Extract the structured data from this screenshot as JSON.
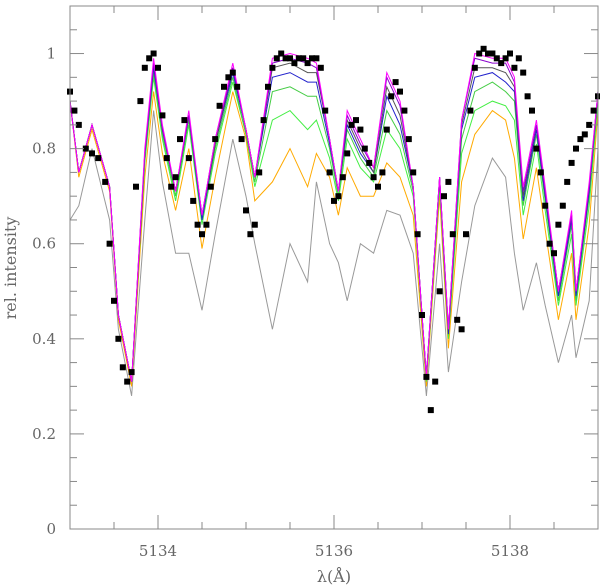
{
  "chart_data": {
    "type": "line",
    "title": "",
    "xlabel": "λ(Å)",
    "ylabel": "rel. intensity",
    "xlim": [
      5133.0,
      5139.0
    ],
    "ylim": [
      0,
      1.1
    ],
    "x_major_ticks": [
      5134,
      5136,
      5138
    ],
    "x_tick_labels": [
      "5134",
      "5136",
      "5138"
    ],
    "y_major_ticks": [
      0,
      0.2,
      0.4,
      0.6,
      0.8,
      1
    ],
    "y_tick_labels": [
      "0",
      "0.2",
      "0.4",
      "0.6",
      "0.8",
      "1"
    ],
    "grid": false,
    "legend": "none",
    "x": [
      5133.0,
      5133.1,
      5133.25,
      5133.45,
      5133.55,
      5133.7,
      5133.85,
      5133.95,
      5134.05,
      5134.2,
      5134.35,
      5134.5,
      5134.65,
      5134.85,
      5135.0,
      5135.1,
      5135.3,
      5135.5,
      5135.7,
      5135.8,
      5135.95,
      5136.05,
      5136.15,
      5136.3,
      5136.45,
      5136.6,
      5136.75,
      5136.9,
      5137.0,
      5137.05,
      5137.2,
      5137.3,
      5137.45,
      5137.6,
      5137.8,
      5137.95,
      5138.05,
      5138.15,
      5138.3,
      5138.4,
      5138.55,
      5138.7,
      5138.75,
      5138.9,
      5139.0
    ],
    "series": [
      {
        "color": "#ff00ff",
        "values": [
          0.9,
          0.75,
          0.85,
          0.72,
          0.45,
          0.31,
          0.8,
          0.99,
          0.85,
          0.71,
          0.88,
          0.66,
          0.82,
          0.98,
          0.84,
          0.74,
          0.99,
          1.0,
          0.99,
          0.98,
          0.82,
          0.71,
          0.88,
          0.82,
          0.76,
          0.96,
          0.9,
          0.72,
          0.45,
          0.32,
          0.74,
          0.42,
          0.86,
          1.0,
          0.99,
          0.99,
          0.95,
          0.72,
          0.86,
          0.72,
          0.5,
          0.67,
          0.5,
          0.73,
          0.92
        ]
      },
      {
        "color": "#8800cc",
        "values": [
          0.9,
          0.75,
          0.85,
          0.72,
          0.45,
          0.31,
          0.79,
          0.98,
          0.84,
          0.71,
          0.87,
          0.66,
          0.82,
          0.97,
          0.84,
          0.74,
          0.98,
          0.99,
          0.98,
          0.97,
          0.82,
          0.71,
          0.87,
          0.81,
          0.76,
          0.95,
          0.89,
          0.72,
          0.45,
          0.32,
          0.74,
          0.42,
          0.86,
          0.99,
          0.98,
          0.98,
          0.94,
          0.71,
          0.85,
          0.71,
          0.5,
          0.66,
          0.5,
          0.72,
          0.92
        ]
      },
      {
        "color": "#555555",
        "values": [
          0.9,
          0.75,
          0.85,
          0.72,
          0.45,
          0.31,
          0.79,
          0.98,
          0.84,
          0.71,
          0.87,
          0.66,
          0.81,
          0.97,
          0.84,
          0.74,
          0.97,
          0.98,
          0.96,
          0.96,
          0.82,
          0.71,
          0.86,
          0.8,
          0.75,
          0.93,
          0.87,
          0.72,
          0.45,
          0.32,
          0.74,
          0.42,
          0.85,
          0.97,
          0.97,
          0.96,
          0.93,
          0.7,
          0.85,
          0.71,
          0.5,
          0.66,
          0.5,
          0.72,
          0.92
        ]
      },
      {
        "color": "#2222cc",
        "values": [
          0.9,
          0.75,
          0.85,
          0.72,
          0.45,
          0.31,
          0.79,
          0.97,
          0.84,
          0.71,
          0.87,
          0.65,
          0.81,
          0.96,
          0.84,
          0.74,
          0.95,
          0.96,
          0.94,
          0.94,
          0.81,
          0.71,
          0.85,
          0.79,
          0.75,
          0.91,
          0.85,
          0.72,
          0.45,
          0.32,
          0.74,
          0.41,
          0.84,
          0.95,
          0.96,
          0.94,
          0.92,
          0.69,
          0.84,
          0.7,
          0.49,
          0.65,
          0.49,
          0.71,
          0.92
        ]
      },
      {
        "color": "#44cc44",
        "values": [
          0.9,
          0.75,
          0.85,
          0.72,
          0.45,
          0.31,
          0.78,
          0.96,
          0.83,
          0.7,
          0.86,
          0.65,
          0.8,
          0.95,
          0.83,
          0.73,
          0.92,
          0.93,
          0.91,
          0.91,
          0.8,
          0.7,
          0.84,
          0.78,
          0.74,
          0.88,
          0.83,
          0.71,
          0.45,
          0.32,
          0.73,
          0.41,
          0.82,
          0.92,
          0.94,
          0.92,
          0.9,
          0.68,
          0.83,
          0.69,
          0.48,
          0.64,
          0.48,
          0.7,
          0.91
        ]
      },
      {
        "color": "#44ee44",
        "values": [
          0.9,
          0.75,
          0.85,
          0.72,
          0.45,
          0.31,
          0.77,
          0.95,
          0.82,
          0.69,
          0.85,
          0.64,
          0.79,
          0.94,
          0.83,
          0.72,
          0.86,
          0.88,
          0.84,
          0.86,
          0.78,
          0.69,
          0.82,
          0.76,
          0.73,
          0.84,
          0.8,
          0.7,
          0.44,
          0.31,
          0.72,
          0.4,
          0.79,
          0.88,
          0.9,
          0.89,
          0.86,
          0.66,
          0.81,
          0.67,
          0.47,
          0.62,
          0.47,
          0.68,
          0.9
        ]
      },
      {
        "color": "#ffaa00",
        "values": [
          0.9,
          0.74,
          0.84,
          0.71,
          0.44,
          0.3,
          0.74,
          0.92,
          0.79,
          0.67,
          0.8,
          0.59,
          0.74,
          0.92,
          0.82,
          0.69,
          0.73,
          0.8,
          0.72,
          0.79,
          0.74,
          0.66,
          0.76,
          0.7,
          0.7,
          0.77,
          0.74,
          0.66,
          0.42,
          0.3,
          0.7,
          0.38,
          0.73,
          0.83,
          0.88,
          0.86,
          0.78,
          0.61,
          0.76,
          0.63,
          0.44,
          0.58,
          0.44,
          0.64,
          0.88
        ]
      },
      {
        "color": "#999999",
        "values": [
          0.65,
          0.68,
          0.8,
          0.65,
          0.42,
          0.28,
          0.65,
          0.88,
          0.73,
          0.58,
          0.58,
          0.46,
          0.62,
          0.82,
          0.7,
          0.6,
          0.42,
          0.6,
          0.52,
          0.73,
          0.6,
          0.56,
          0.48,
          0.6,
          0.58,
          0.67,
          0.66,
          0.58,
          0.38,
          0.28,
          0.6,
          0.33,
          0.52,
          0.68,
          0.78,
          0.74,
          0.58,
          0.46,
          0.56,
          0.47,
          0.35,
          0.45,
          0.36,
          0.48,
          0.8
        ]
      }
    ],
    "observed": {
      "marker": "square",
      "color": "#000000",
      "x": [
        5133.0,
        5133.05,
        5133.1,
        5133.18,
        5133.25,
        5133.32,
        5133.4,
        5133.45,
        5133.5,
        5133.55,
        5133.6,
        5133.65,
        5133.7,
        5133.75,
        5133.8,
        5133.85,
        5133.9,
        5133.95,
        5134.0,
        5134.05,
        5134.1,
        5134.15,
        5134.2,
        5134.25,
        5134.3,
        5134.35,
        5134.4,
        5134.45,
        5134.5,
        5134.55,
        5134.6,
        5134.65,
        5134.7,
        5134.75,
        5134.8,
        5134.85,
        5134.9,
        5134.95,
        5135.0,
        5135.05,
        5135.1,
        5135.15,
        5135.2,
        5135.25,
        5135.3,
        5135.35,
        5135.4,
        5135.45,
        5135.5,
        5135.55,
        5135.6,
        5135.65,
        5135.7,
        5135.75,
        5135.8,
        5135.85,
        5135.9,
        5135.95,
        5136.0,
        5136.05,
        5136.1,
        5136.15,
        5136.2,
        5136.25,
        5136.3,
        5136.35,
        5136.4,
        5136.45,
        5136.5,
        5136.55,
        5136.6,
        5136.65,
        5136.7,
        5136.75,
        5136.8,
        5136.85,
        5136.9,
        5136.95,
        5137.0,
        5137.05,
        5137.1,
        5137.15,
        5137.2,
        5137.25,
        5137.3,
        5137.35,
        5137.4,
        5137.45,
        5137.5,
        5137.55,
        5137.6,
        5137.65,
        5137.7,
        5137.75,
        5137.8,
        5137.85,
        5137.9,
        5137.95,
        5138.0,
        5138.05,
        5138.1,
        5138.15,
        5138.2,
        5138.25,
        5138.3,
        5138.35,
        5138.4,
        5138.45,
        5138.5,
        5138.55,
        5138.6,
        5138.65,
        5138.7,
        5138.75,
        5138.8,
        5138.85,
        5138.9,
        5138.95,
        5139.0
      ],
      "y": [
        0.92,
        0.88,
        0.85,
        0.8,
        0.79,
        0.78,
        0.73,
        0.6,
        0.48,
        0.4,
        0.34,
        0.31,
        0.33,
        0.72,
        0.9,
        0.97,
        0.99,
        1.0,
        0.97,
        0.87,
        0.78,
        0.72,
        0.74,
        0.82,
        0.86,
        0.78,
        0.69,
        0.64,
        0.62,
        0.64,
        0.72,
        0.82,
        0.89,
        0.93,
        0.95,
        0.96,
        0.93,
        0.82,
        0.67,
        0.62,
        0.64,
        0.75,
        0.86,
        0.93,
        0.97,
        0.99,
        1.0,
        0.99,
        0.99,
        0.98,
        0.99,
        0.99,
        0.98,
        0.99,
        0.99,
        0.97,
        0.88,
        0.75,
        0.69,
        0.7,
        0.74,
        0.79,
        0.85,
        0.86,
        0.84,
        0.8,
        0.77,
        0.74,
        0.72,
        0.75,
        0.84,
        0.91,
        0.94,
        0.92,
        0.88,
        0.82,
        0.75,
        0.62,
        0.45,
        0.32,
        0.25,
        0.31,
        0.5,
        0.7,
        0.73,
        0.62,
        0.44,
        0.42,
        0.62,
        0.88,
        0.97,
        1.0,
        1.01,
        1.0,
        1.0,
        0.99,
        0.98,
        0.99,
        1.0,
        0.97,
        0.99,
        0.96,
        0.91,
        0.88,
        0.8,
        0.75,
        0.68,
        0.6,
        0.58,
        0.64,
        0.68,
        0.73,
        0.77,
        0.8,
        0.82,
        0.83,
        0.85,
        0.88,
        0.91
      ]
    }
  }
}
